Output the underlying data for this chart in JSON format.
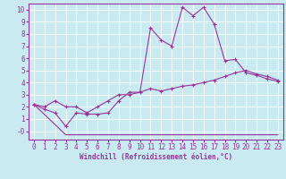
{
  "background_color": "#c8eaf0",
  "line_color": "#993399",
  "grid_color": "#ffffff",
  "xlabel": "Windchill (Refroidissement éolien,°C)",
  "xlim": [
    -0.5,
    23.5
  ],
  "ylim": [
    -0.7,
    10.5
  ],
  "xticks": [
    0,
    1,
    2,
    3,
    4,
    5,
    6,
    7,
    8,
    9,
    10,
    11,
    12,
    13,
    14,
    15,
    16,
    17,
    18,
    19,
    20,
    21,
    22,
    23
  ],
  "yticks": [
    0,
    1,
    2,
    3,
    4,
    5,
    6,
    7,
    8,
    9,
    10
  ],
  "ytick_labels": [
    "-0",
    "1",
    "2",
    "3",
    "4",
    "5",
    "6",
    "7",
    "8",
    "9",
    "10"
  ],
  "series": [
    {
      "x": [
        0,
        1,
        2,
        3,
        4,
        5,
        6,
        7,
        8,
        9,
        10,
        11,
        12,
        13,
        14,
        15,
        16,
        17,
        18,
        19,
        20,
        21,
        22,
        23
      ],
      "y": [
        2.2,
        1.8,
        1.5,
        0.4,
        1.5,
        1.4,
        1.4,
        1.5,
        2.5,
        3.2,
        3.2,
        8.5,
        7.5,
        7.0,
        10.2,
        9.5,
        10.2,
        8.8,
        5.8,
        5.9,
        4.8,
        4.6,
        4.3,
        4.1
      ],
      "marker": true
    },
    {
      "x": [
        0,
        1,
        2,
        3,
        4,
        5,
        6,
        7,
        8,
        9,
        10,
        11,
        12,
        13,
        14,
        15,
        16,
        17,
        18,
        19,
        20,
        21,
        22,
        23
      ],
      "y": [
        2.2,
        2.0,
        2.5,
        2.0,
        2.0,
        1.5,
        2.0,
        2.5,
        3.0,
        3.0,
        3.2,
        3.5,
        3.3,
        3.5,
        3.7,
        3.8,
        4.0,
        4.2,
        4.5,
        4.8,
        5.0,
        4.7,
        4.5,
        4.2
      ],
      "marker": true
    },
    {
      "x": [
        0,
        3,
        10,
        22,
        23
      ],
      "y": [
        2.2,
        -0.3,
        -0.3,
        -0.3,
        -0.3
      ],
      "marker": false
    }
  ]
}
